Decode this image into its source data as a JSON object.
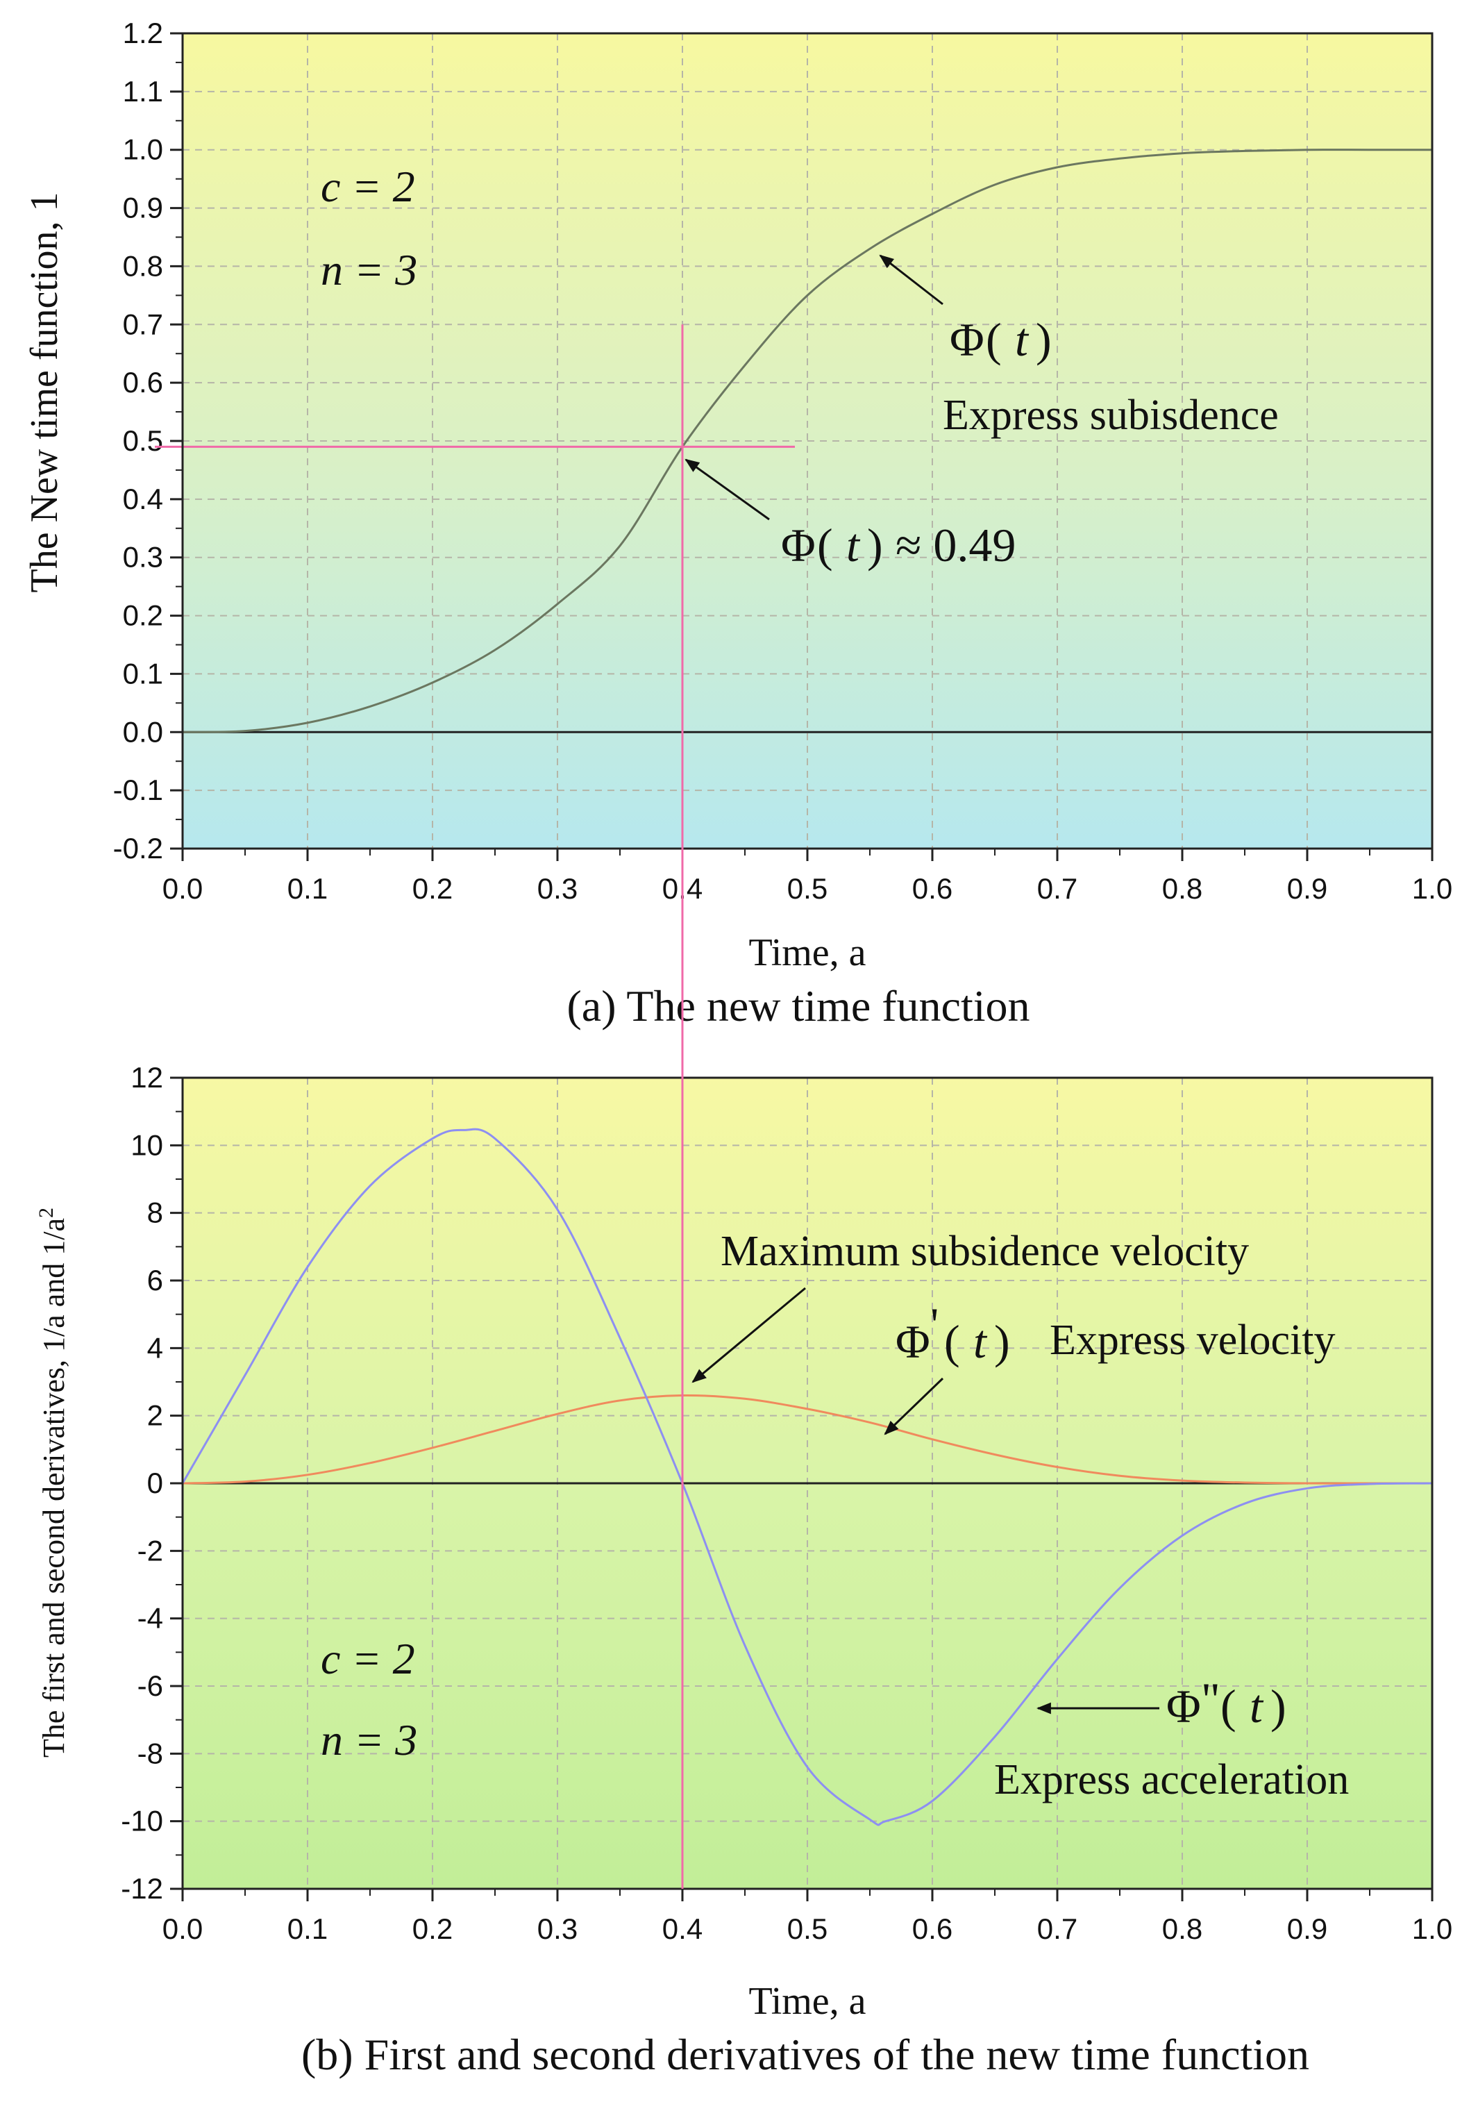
{
  "chart_data": [
    {
      "id": "a",
      "type": "line",
      "caption": "(a) The new time function",
      "xlabel": "Time, a",
      "ylabel": "The New time function, 1",
      "xlim": [
        0.0,
        1.0
      ],
      "ylim": [
        -0.2,
        1.2
      ],
      "xticks": [
        "0.0",
        "0.1",
        "0.2",
        "0.3",
        "0.4",
        "0.5",
        "0.6",
        "0.7",
        "0.8",
        "0.9",
        "1.0"
      ],
      "yticks": [
        "-0.2",
        "-0.1",
        "0.0",
        "0.1",
        "0.2",
        "0.3",
        "0.4",
        "0.5",
        "0.6",
        "0.7",
        "0.8",
        "0.9",
        "1.0",
        "1.1",
        "1.2"
      ],
      "grid": true,
      "params": {
        "c": "c = 2",
        "n": "n = 3"
      },
      "series": [
        {
          "name": "Φ(t)",
          "color": "#6b7760",
          "x": [
            0.0,
            0.05,
            0.1,
            0.15,
            0.2,
            0.25,
            0.3,
            0.35,
            0.4,
            0.45,
            0.5,
            0.55,
            0.6,
            0.65,
            0.7,
            0.75,
            0.8,
            0.85,
            0.9,
            0.95,
            1.0
          ],
          "y": [
            0.0,
            0.002,
            0.016,
            0.044,
            0.085,
            0.141,
            0.22,
            0.32,
            0.49,
            0.63,
            0.75,
            0.83,
            0.89,
            0.94,
            0.97,
            0.985,
            0.994,
            0.998,
            1.0,
            1.0,
            1.0
          ]
        }
      ],
      "markers": {
        "x": 0.4,
        "y": 0.49,
        "color": "#f06aa8"
      },
      "annotations": {
        "phi_label": "Φ",
        "t_label": "t",
        "subsidence_text": "Express subisdence",
        "approx_text": "≈ 0.49"
      }
    },
    {
      "id": "b",
      "type": "line",
      "caption": "(b) First and second derivatives of the new time function",
      "xlabel": "Time, a",
      "ylabel": "The first and second derivatives, 1/a and 1/a",
      "ylabel_sup": "2",
      "xlim": [
        0.0,
        1.0
      ],
      "ylim": [
        -12,
        12
      ],
      "xticks": [
        "0.0",
        "0.1",
        "0.2",
        "0.3",
        "0.4",
        "0.5",
        "0.6",
        "0.7",
        "0.8",
        "0.9",
        "1.0"
      ],
      "yticks": [
        "-12",
        "-10",
        "-8",
        "-6",
        "-4",
        "-2",
        "0",
        "2",
        "4",
        "6",
        "8",
        "10",
        "12"
      ],
      "grid": true,
      "params": {
        "c": "c = 2",
        "n": "n = 3"
      },
      "series": [
        {
          "name": "Φ'(t)",
          "color": "#f08a5d",
          "x": [
            0.0,
            0.05,
            0.1,
            0.15,
            0.2,
            0.25,
            0.3,
            0.35,
            0.4,
            0.45,
            0.5,
            0.55,
            0.6,
            0.65,
            0.7,
            0.75,
            0.8,
            0.85,
            0.9,
            0.95,
            1.0
          ],
          "y": [
            0.0,
            0.05,
            0.25,
            0.6,
            1.05,
            1.55,
            2.05,
            2.45,
            2.6,
            2.5,
            2.2,
            1.8,
            1.3,
            0.85,
            0.48,
            0.22,
            0.08,
            0.02,
            0.0,
            0.0,
            0.0
          ]
        },
        {
          "name": "Φ''(t)",
          "color": "#8d8ff2",
          "x": [
            0.0,
            0.05,
            0.1,
            0.15,
            0.2,
            0.225,
            0.25,
            0.3,
            0.35,
            0.4,
            0.45,
            0.5,
            0.55,
            0.5625,
            0.6,
            0.65,
            0.7,
            0.75,
            0.8,
            0.85,
            0.9,
            0.95,
            1.0
          ],
          "y": [
            0.0,
            3.2,
            6.4,
            8.8,
            10.2,
            10.45,
            10.2,
            8.1,
            4.3,
            0.0,
            -4.8,
            -8.4,
            -9.95,
            -10.0,
            -9.4,
            -7.5,
            -5.2,
            -3.1,
            -1.55,
            -0.6,
            -0.15,
            -0.02,
            0.0
          ]
        }
      ],
      "markers": {
        "x": 0.4,
        "color": "#f06aa8"
      },
      "annotations": {
        "max_velocity_text": "Maximum subsidence velocity",
        "phi_label": "Φ",
        "t_label": "t",
        "prime_mark": "'",
        "double_prime_mark": "\"",
        "velocity_text": "Express velocity",
        "acceleration_text": "Express acceleration"
      }
    }
  ]
}
